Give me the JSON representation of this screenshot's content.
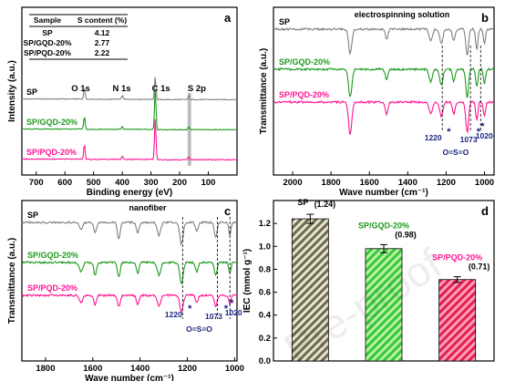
{
  "colors": {
    "SP": "#7f7f7f",
    "SP/GQD-20%": "#1d9a1d",
    "SP/PQD-20%": "#ff1493"
  },
  "watermark": "Pre-proof",
  "chart_data": [
    {
      "panel": "a",
      "type": "line",
      "title": "",
      "xlabel": "Binding energy (eV)",
      "ylabel": "Intensity (a.u.)",
      "xlim": [
        750,
        0
      ],
      "xticks": [
        700,
        600,
        500,
        400,
        300,
        200,
        100
      ],
      "peak_labels": [
        "O 1s",
        "N 1s",
        "C 1s",
        "S 2p"
      ],
      "series": [
        {
          "name": "SP",
          "offset": 2.6,
          "peaks": [
            [
              532,
              0.45
            ],
            [
              400,
              0.15
            ],
            [
              285,
              0.9
            ],
            [
              168,
              0.15
            ]
          ]
        },
        {
          "name": "SP/GQD-20%",
          "offset": 1.3,
          "peaks": [
            [
              532,
              0.5
            ],
            [
              400,
              0.12
            ],
            [
              285,
              1.6
            ],
            [
              168,
              0.12
            ]
          ]
        },
        {
          "name": "SP/PQD-20%",
          "offset": 0.0,
          "peaks": [
            [
              532,
              0.55
            ],
            [
              400,
              0.12
            ],
            [
              285,
              1.5
            ],
            [
              168,
              0.12
            ]
          ]
        }
      ],
      "table": {
        "headers": [
          "Sample",
          "S content (%)"
        ],
        "rows": [
          [
            "SP",
            "4.12"
          ],
          [
            "SP/GQD-20%",
            "2.77"
          ],
          [
            "SP/PQD-20%",
            "2.22"
          ]
        ]
      }
    },
    {
      "panel": "b",
      "type": "line",
      "title": "electrospinning solution",
      "xlabel": "Wave number (cm⁻¹)",
      "ylabel": "Transmittance (a.u.)",
      "xlim": [
        2100,
        950
      ],
      "xticks": [
        2000,
        1800,
        1600,
        1400,
        1200,
        1000
      ],
      "annotations": [
        "1220",
        "1073",
        "1020",
        "O=S=O"
      ],
      "series": [
        {
          "name": "SP",
          "offset": 2.5,
          "dips": [
            [
              1700,
              0.6,
              12
            ],
            [
              1510,
              0.25,
              10
            ],
            [
              1280,
              0.3,
              12
            ],
            [
              1225,
              0.35,
              12
            ],
            [
              1160,
              0.3,
              10
            ],
            [
              1090,
              0.65,
              10
            ],
            [
              1040,
              0.5,
              8
            ],
            [
              1000,
              0.35,
              8
            ]
          ]
        },
        {
          "name": "SP/GQD-20%",
          "offset": 1.25,
          "dips": [
            [
              1700,
              0.7,
              12
            ],
            [
              1510,
              0.25,
              10
            ],
            [
              1280,
              0.3,
              12
            ],
            [
              1225,
              0.4,
              12
            ],
            [
              1160,
              0.3,
              10
            ],
            [
              1090,
              0.7,
              10
            ],
            [
              1040,
              0.45,
              8
            ],
            [
              1000,
              0.35,
              8
            ]
          ]
        },
        {
          "name": "SP/PQD-20%",
          "offset": 0.0,
          "dips": [
            [
              1700,
              0.8,
              12
            ],
            [
              1510,
              0.3,
              10
            ],
            [
              1280,
              0.3,
              12
            ],
            [
              1225,
              0.35,
              12
            ],
            [
              1160,
              0.3,
              10
            ],
            [
              1090,
              0.75,
              10
            ],
            [
              1040,
              0.45,
              8
            ],
            [
              1000,
              0.35,
              8
            ]
          ]
        }
      ]
    },
    {
      "panel": "c",
      "type": "line",
      "title": "nanofiber",
      "xlabel": "Wave number (cm⁻¹)",
      "ylabel": "Transmittance (a.u.)",
      "xlim": [
        1900,
        990
      ],
      "xticks": [
        1800,
        1600,
        1400,
        1200,
        1000
      ],
      "annotations": [
        "1220",
        "1073",
        "1020",
        "O=S=O"
      ],
      "series": [
        {
          "name": "SP",
          "offset": 2.4,
          "dips": [
            [
              1650,
              0.2,
              10
            ],
            [
              1590,
              0.3,
              8
            ],
            [
              1490,
              0.45,
              8
            ],
            [
              1410,
              0.3,
              8
            ],
            [
              1320,
              0.35,
              10
            ],
            [
              1225,
              0.6,
              10
            ],
            [
              1160,
              0.25,
              8
            ],
            [
              1080,
              0.4,
              8
            ],
            [
              1020,
              0.35,
              6
            ]
          ]
        },
        {
          "name": "SP/GQD-20%",
          "offset": 1.2,
          "dips": [
            [
              1650,
              0.25,
              10
            ],
            [
              1590,
              0.35,
              8
            ],
            [
              1490,
              0.4,
              8
            ],
            [
              1410,
              0.3,
              8
            ],
            [
              1320,
              0.35,
              10
            ],
            [
              1225,
              0.6,
              10
            ],
            [
              1160,
              0.25,
              8
            ],
            [
              1080,
              0.35,
              8
            ],
            [
              1020,
              0.3,
              6
            ]
          ]
        },
        {
          "name": "SP/PQD-20%",
          "offset": 0.0,
          "dips": [
            [
              1650,
              0.2,
              10
            ],
            [
              1590,
              0.25,
              8
            ],
            [
              1490,
              0.3,
              8
            ],
            [
              1410,
              0.25,
              8
            ],
            [
              1320,
              0.3,
              10
            ],
            [
              1225,
              0.45,
              10
            ],
            [
              1160,
              0.2,
              8
            ],
            [
              1080,
              0.3,
              8
            ],
            [
              1020,
              0.25,
              6
            ]
          ]
        }
      ]
    },
    {
      "panel": "d",
      "type": "bar",
      "title": "",
      "xlabel": "",
      "ylabel": "IEC (mmol g⁻¹)",
      "ylim": [
        0.0,
        1.4
      ],
      "yticks": [
        0.0,
        0.2,
        0.4,
        0.6,
        0.8,
        1.0,
        1.2
      ],
      "categories": [
        "SP",
        "SP/GQD-20%",
        "SP/PQD-20%"
      ],
      "values": [
        1.24,
        0.98,
        0.71
      ],
      "errors": [
        0.04,
        0.035,
        0.025
      ],
      "value_labels": [
        "(1.24)",
        "(0.98)",
        "(0.71)"
      ]
    }
  ]
}
